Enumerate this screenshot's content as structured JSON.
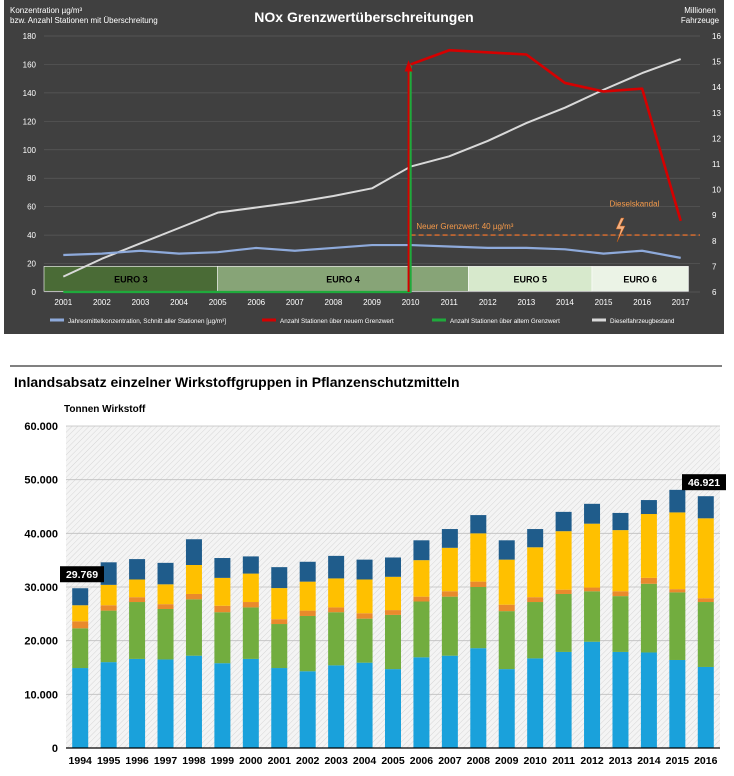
{
  "chart_data": [
    {
      "type": "line",
      "title": "NOx Grenzwertüberschreitungen",
      "ylabel_left": [
        "Konzentration µg/m³",
        "bzw. Anzahl Stationen mit Überschreitung"
      ],
      "ylabel_right": [
        "Millionen",
        "Fahrzeuge"
      ],
      "ylim_left": [
        0,
        180
      ],
      "ylim_right": [
        6,
        16
      ],
      "yticks_left": [
        "0",
        "20",
        "40",
        "60",
        "80",
        "100",
        "120",
        "140",
        "160",
        "180"
      ],
      "yticks_right": [
        "6",
        "7",
        "8",
        "9",
        "10",
        "11",
        "12",
        "13",
        "14",
        "15",
        "16"
      ],
      "x": [
        "2001",
        "2002",
        "2003",
        "2004",
        "2005",
        "2006",
        "2007",
        "2008",
        "2009",
        "2010",
        "2011",
        "2012",
        "2013",
        "2014",
        "2015",
        "2016",
        "2017"
      ],
      "series": [
        {
          "name": "Jahresmittelkonzentration, Schnitt aller Stationen [µg/m³]",
          "color": "#8eaadb",
          "axis": "left",
          "values": [
            26,
            27,
            29,
            27,
            28,
            31,
            29,
            31,
            33,
            33,
            32,
            31,
            31,
            30,
            27,
            29,
            24
          ]
        },
        {
          "name": "Anzahl Stationen über neuem Grenzwert",
          "color": "#d50000",
          "axis": "left",
          "x": [
            2010,
            2011,
            2013,
            2014,
            2015,
            2016,
            2017
          ],
          "values": [
            160,
            170,
            167,
            147,
            141,
            143,
            50
          ]
        },
        {
          "name": "Anzahl Stationen über altem Grenzwert",
          "color": "#1faa3c",
          "axis": "left",
          "x": [
            2001,
            2010,
            2010
          ],
          "values": [
            0,
            0,
            160
          ]
        },
        {
          "name": "Dieselfahrzeugbestand",
          "color": "#d9d9d9",
          "axis": "right",
          "values": [
            6.6,
            7.3,
            7.9,
            8.5,
            9.1,
            9.3,
            9.5,
            9.75,
            10.05,
            10.9,
            11.3,
            11.9,
            12.6,
            13.2,
            13.9,
            14.55,
            15.1
          ]
        }
      ],
      "annotations": {
        "new_limit_label": "Neuer Grenzwert: 40 µg/m³",
        "new_limit_value": 40,
        "scandal_label": "Dieselskandal",
        "euro_bands": [
          {
            "label": "EURO 3",
            "from": 2000.5,
            "to": 2005,
            "color": "#4a6b36"
          },
          {
            "label": "EURO 4",
            "from": 2005,
            "to": 2011.5,
            "color": "#87a477"
          },
          {
            "label": "EURO 5",
            "from": 2011.5,
            "to": 2014.7,
            "color": "#d7e9cc"
          },
          {
            "label": "EURO 6",
            "from": 2014.7,
            "to": 2017.2,
            "color": "#ebf3e6"
          }
        ]
      },
      "legend": "bottom",
      "grid": true
    },
    {
      "type": "bar",
      "stacked": true,
      "title": "Inlandsabsatz einzelner Wirkstoffgruppen in Pflanzenschutzmitteln",
      "ylabel": "Tonnen Wirkstoff",
      "ylim": [
        0,
        60000
      ],
      "yticks": [
        "0",
        "10.000",
        "20.000",
        "30.000",
        "40.000",
        "50.000",
        "60.000"
      ],
      "categories": [
        "1994",
        "1995",
        "1996",
        "1997",
        "1998",
        "1999",
        "2000",
        "2001",
        "2002",
        "2003",
        "2004",
        "2005",
        "2006",
        "2007",
        "2008",
        "2009",
        "2010",
        "2011",
        "2012",
        "2013",
        "2014",
        "2015",
        "2016"
      ],
      "series": [
        {
          "color": "#1aa1db",
          "values": [
            14900,
            16000,
            16600,
            16500,
            17200,
            15800,
            16600,
            14900,
            14300,
            15400,
            15900,
            14700,
            16900,
            17200,
            18600,
            14700,
            16700,
            17900,
            19800,
            17900,
            17800,
            16400,
            15100
          ]
        },
        {
          "color": "#72ad3f",
          "values": [
            7400,
            9600,
            10600,
            9400,
            10500,
            9500,
            9600,
            8200,
            10300,
            9900,
            8200,
            10100,
            10400,
            11000,
            11400,
            10800,
            10500,
            10800,
            9400,
            10400,
            12800,
            12600,
            12100
          ]
        },
        {
          "color": "#e98a2c",
          "values": [
            1300,
            1000,
            900,
            900,
            1000,
            1200,
            1000,
            900,
            1000,
            900,
            1000,
            900,
            900,
            1000,
            1000,
            1200,
            900,
            800,
            700,
            900,
            1100,
            600,
            700
          ]
        },
        {
          "color": "#ffc000",
          "values": [
            3000,
            3800,
            3300,
            3700,
            5400,
            5200,
            5300,
            5800,
            5400,
            5400,
            6300,
            6200,
            6800,
            8100,
            9000,
            8400,
            9300,
            10900,
            11900,
            11400,
            11900,
            14300,
            14900
          ]
        },
        {
          "color": "#1f5c8b",
          "values": [
            3169,
            4200,
            3800,
            4000,
            4800,
            3700,
            3200,
            3900,
            3700,
            4200,
            3700,
            3600,
            3700,
            3500,
            3400,
            3600,
            3400,
            3600,
            3700,
            3200,
            2600,
            4200,
            4121
          ]
        }
      ],
      "callouts": [
        {
          "category": "1994",
          "label": "29.769",
          "total": 29769
        },
        {
          "category": "2016",
          "label": "46.921",
          "total": 46921
        }
      ],
      "grid": true
    }
  ]
}
